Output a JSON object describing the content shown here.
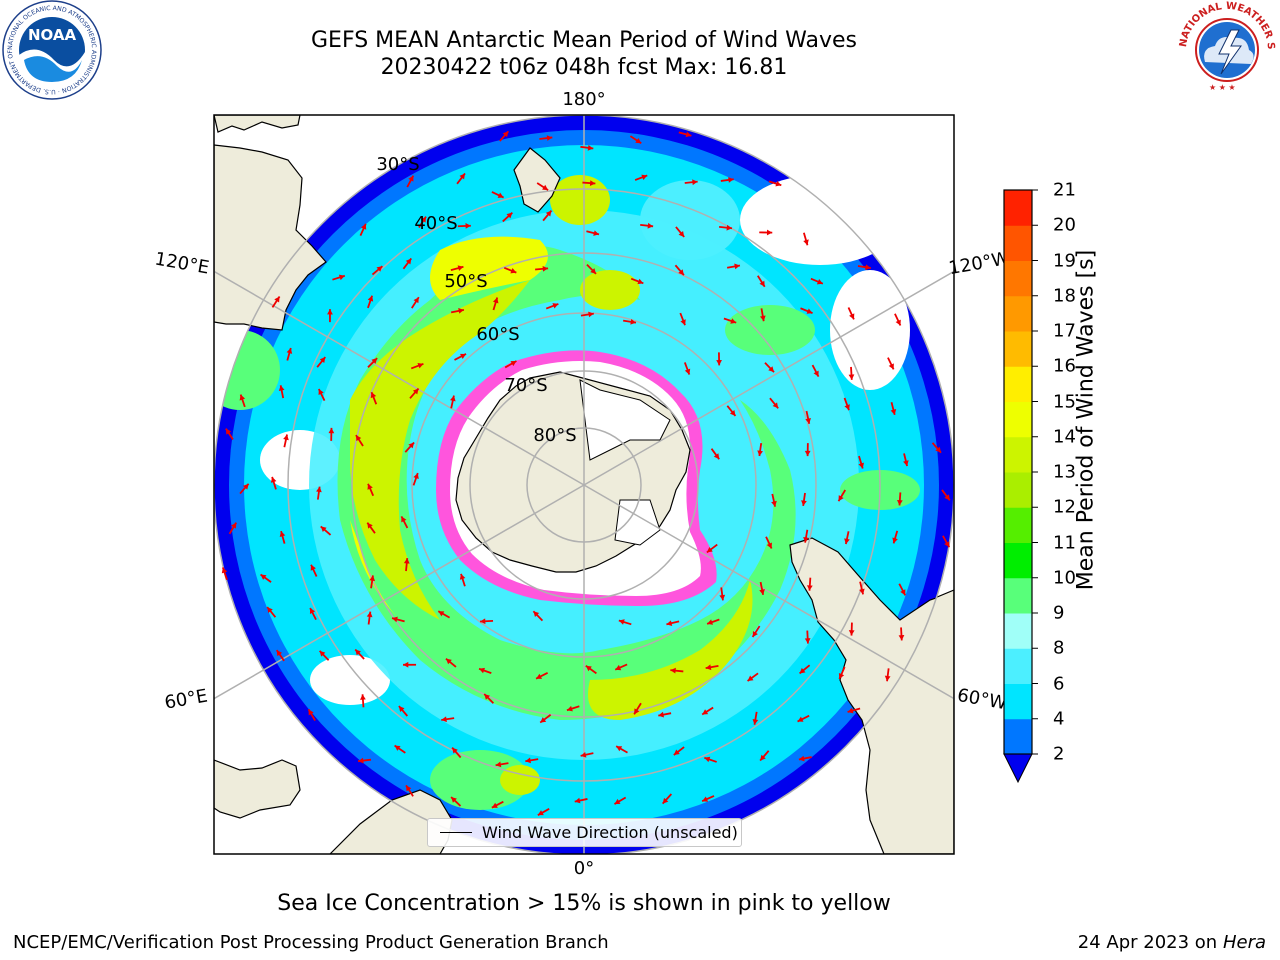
{
  "title_line1": "GEFS MEAN Antarctic Mean Period of Wind Waves",
  "title_line2": "20230422 t06z 048h fcst   Max: 16.81",
  "map": {
    "projection": "south-polar-stereographic",
    "longitude_labels": [
      "180°",
      "120°E",
      "120°W",
      "60°E",
      "60°W",
      "0°"
    ],
    "latitude_labels": [
      "30°S",
      "40°S",
      "50°S",
      "60°S",
      "70°S",
      "80°S"
    ],
    "colors": {
      "land": "#eeecdb",
      "open_water": "#ffffff",
      "sea_ice": "#ff55dd",
      "wind_arrow": "#ee0000",
      "grid": "#b0b0b0"
    }
  },
  "legend": {
    "label": "Wind Wave Direction (unscaled)"
  },
  "colorbar": {
    "label": "Mean Period of Wind Waves [s]",
    "ticks": [
      "2",
      "4",
      "6",
      "8",
      "9",
      "10",
      "11",
      "12",
      "13",
      "14",
      "15",
      "16",
      "17",
      "18",
      "19",
      "20",
      "21"
    ],
    "colors": [
      "#0077ff",
      "#00e5ff",
      "#4cefff",
      "#a0fff8",
      "#58ff7a",
      "#00ee00",
      "#55ee00",
      "#aaee00",
      "#ccf400",
      "#eeff00",
      "#ffee00",
      "#ffbb00",
      "#ff9900",
      "#ff7700",
      "#ff5500",
      "#ff2200",
      "#ff0000"
    ],
    "under_color": "#0000ee"
  },
  "caption": "Sea Ice Concentration > 15% is shown in pink to yellow",
  "footer": {
    "left": "NCEP/EMC/Verification Post Processing Product Generation Branch",
    "date": "24 Apr 2023 on",
    "machine": "Hera"
  },
  "logos": {
    "left": {
      "text": "NOAA",
      "ring_text": "NATIONAL OCEANIC AND ATMOSPHERIC ADMINISTRATION · U.S. DEPARTMENT OF COMMERCE"
    },
    "right": {
      "ring_text": "NATIONAL WEATHER SERVICE"
    }
  }
}
